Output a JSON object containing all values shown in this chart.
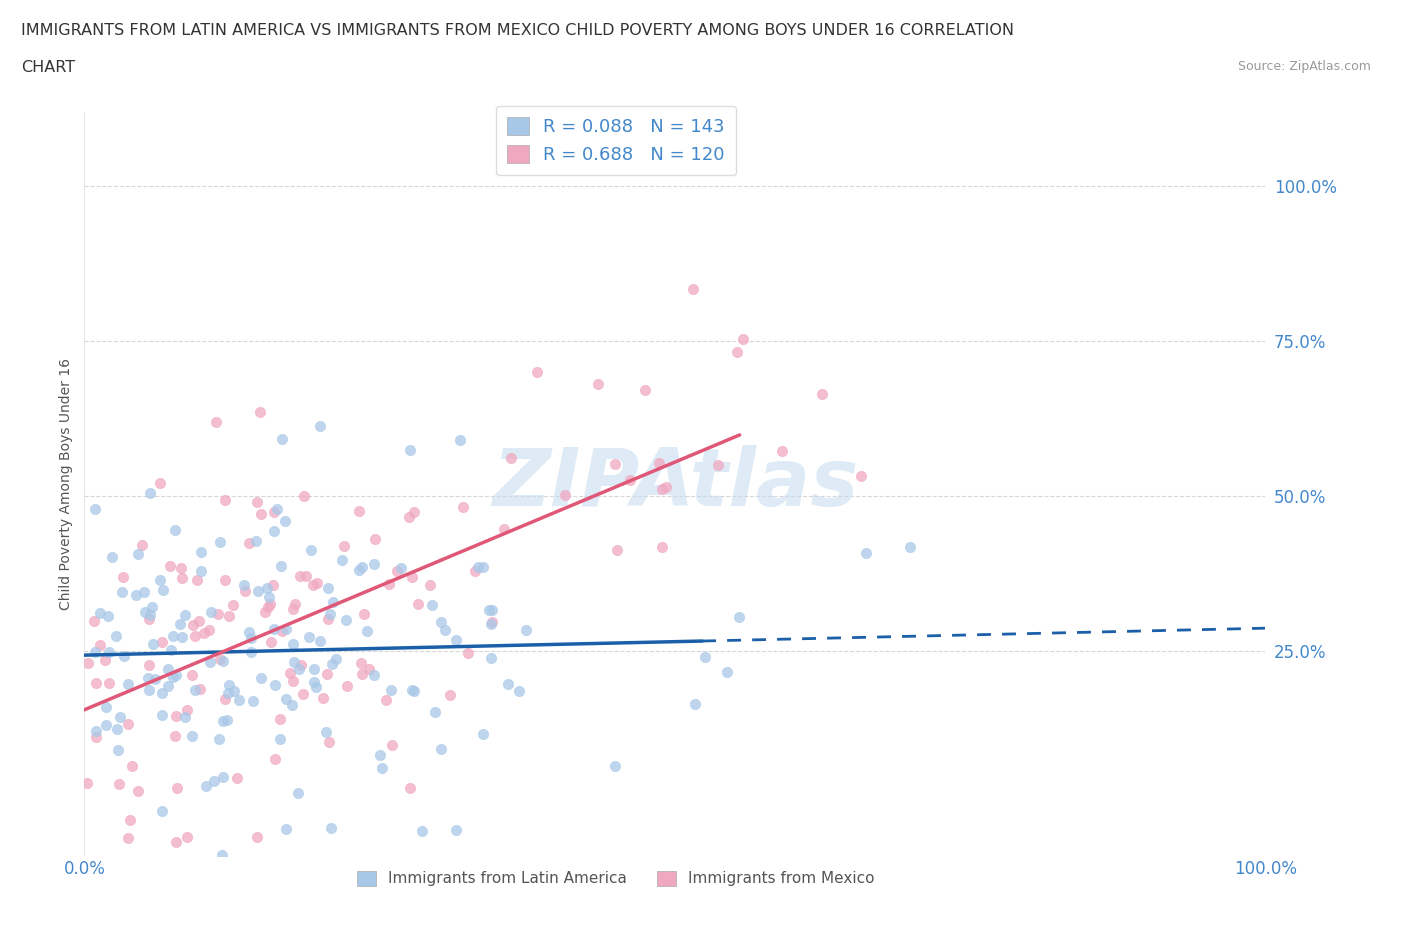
{
  "title_line1": "IMMIGRANTS FROM LATIN AMERICA VS IMMIGRANTS FROM MEXICO CHILD POVERTY AMONG BOYS UNDER 16 CORRELATION",
  "title_line2": "CHART",
  "source_text": "Source: ZipAtlas.com",
  "ylabel": "Child Poverty Among Boys Under 16",
  "xlim": [
    0,
    1
  ],
  "ylim": [
    -0.08,
    1.12
  ],
  "ytick_vals": [
    0.0,
    0.25,
    0.5,
    0.75,
    1.0
  ],
  "ytick_labels": [
    "",
    "25.0%",
    "50.0%",
    "75.0%",
    "100.0%"
  ],
  "xtick_vals": [
    0.0,
    1.0
  ],
  "xtick_labels": [
    "0.0%",
    "100.0%"
  ],
  "r1": 0.088,
  "n1": 143,
  "r2": 0.688,
  "n2": 120,
  "color1": "#a8c8e8",
  "color2": "#f0a8c0",
  "line_color1": "#1a5fa8",
  "line_color2": "#e05878",
  "watermark": "ZIPAtlas",
  "watermark_color": "#c8ddf0",
  "legend_label1": "Immigrants from Latin America",
  "legend_label2": "Immigrants from Mexico",
  "title_fontsize": 11.5,
  "background_color": "#ffffff",
  "grid_color": "#cccccc",
  "tick_color": "#4488cc",
  "ylabel_fontsize": 10,
  "seed1": 42,
  "seed2": 77
}
